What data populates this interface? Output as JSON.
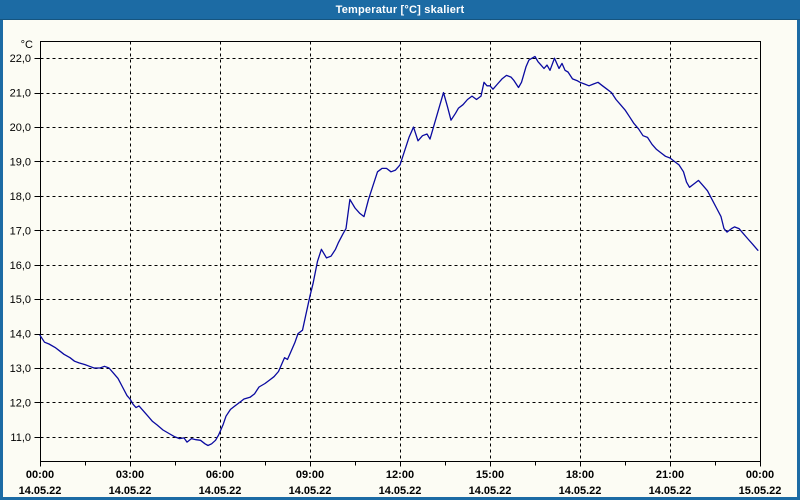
{
  "window": {
    "title": "Temperatur [°C] skaliert"
  },
  "colors": {
    "frame": "#1C6BA4",
    "title_text": "#FFFFFF",
    "background": "#FCFCF4",
    "grid": "#000000",
    "axis": "#000000",
    "label": "#000000",
    "line": "#0A0AA0"
  },
  "chart_data": {
    "type": "line",
    "title": "Temperatur [°C] skaliert",
    "ylabel": "°C",
    "y_unit_label": "°C",
    "grid": "dashed",
    "legend_position": "none",
    "xlim_hours": [
      0,
      24
    ],
    "ylim": [
      10.3,
      22.5
    ],
    "x_ticks": [
      {
        "hour": 0,
        "time": "00:00",
        "date": "14.05.22"
      },
      {
        "hour": 3,
        "time": "03:00",
        "date": "14.05.22"
      },
      {
        "hour": 6,
        "time": "06:00",
        "date": "14.05.22"
      },
      {
        "hour": 9,
        "time": "09:00",
        "date": "14.05.22"
      },
      {
        "hour": 12,
        "time": "12:00",
        "date": "14.05.22"
      },
      {
        "hour": 15,
        "time": "15:00",
        "date": "14.05.22"
      },
      {
        "hour": 18,
        "time": "18:00",
        "date": "14.05.22"
      },
      {
        "hour": 21,
        "time": "21:00",
        "date": "14.05.22"
      },
      {
        "hour": 24,
        "time": "00:00",
        "date": "15.05.22"
      }
    ],
    "x_minor_tick_hours": [
      1.5,
      4.5,
      7.5,
      10.5,
      13.5,
      16.5,
      19.5,
      22.5
    ],
    "y_ticks": [
      {
        "value": 22,
        "label": "22,0"
      },
      {
        "value": 21,
        "label": "21,0"
      },
      {
        "value": 20,
        "label": "20,0"
      },
      {
        "value": 19,
        "label": "19,0"
      },
      {
        "value": 18,
        "label": "18,0"
      },
      {
        "value": 17,
        "label": "17,0"
      },
      {
        "value": 16,
        "label": "16,0"
      },
      {
        "value": 15,
        "label": "15,0"
      },
      {
        "value": 14,
        "label": "14,0"
      },
      {
        "value": 13,
        "label": "13,0"
      },
      {
        "value": 12,
        "label": "12,0"
      },
      {
        "value": 11,
        "label": "11,0"
      }
    ],
    "series": [
      {
        "name": "Temperatur",
        "color": "#0A0AA0",
        "points": [
          [
            0.0,
            13.95
          ],
          [
            0.15,
            13.75
          ],
          [
            0.3,
            13.7
          ],
          [
            0.5,
            13.6
          ],
          [
            0.65,
            13.5
          ],
          [
            0.8,
            13.4
          ],
          [
            1.0,
            13.3
          ],
          [
            1.15,
            13.2
          ],
          [
            1.3,
            13.15
          ],
          [
            1.5,
            13.1
          ],
          [
            1.65,
            13.05
          ],
          [
            1.8,
            13.0
          ],
          [
            2.0,
            13.0
          ],
          [
            2.15,
            13.05
          ],
          [
            2.3,
            13.0
          ],
          [
            2.45,
            12.85
          ],
          [
            2.6,
            12.7
          ],
          [
            2.75,
            12.45
          ],
          [
            2.9,
            12.2
          ],
          [
            3.0,
            12.1
          ],
          [
            3.1,
            11.95
          ],
          [
            3.2,
            11.85
          ],
          [
            3.3,
            11.9
          ],
          [
            3.45,
            11.75
          ],
          [
            3.6,
            11.6
          ],
          [
            3.75,
            11.45
          ],
          [
            3.9,
            11.35
          ],
          [
            4.1,
            11.2
          ],
          [
            4.3,
            11.1
          ],
          [
            4.5,
            11.0
          ],
          [
            4.65,
            10.95
          ],
          [
            4.8,
            10.97
          ],
          [
            4.9,
            10.85
          ],
          [
            5.05,
            10.95
          ],
          [
            5.2,
            10.92
          ],
          [
            5.35,
            10.9
          ],
          [
            5.5,
            10.8
          ],
          [
            5.6,
            10.75
          ],
          [
            5.72,
            10.8
          ],
          [
            5.85,
            10.9
          ],
          [
            5.95,
            11.05
          ],
          [
            6.1,
            11.35
          ],
          [
            6.2,
            11.6
          ],
          [
            6.35,
            11.8
          ],
          [
            6.5,
            11.9
          ],
          [
            6.65,
            12.0
          ],
          [
            6.8,
            12.1
          ],
          [
            7.0,
            12.15
          ],
          [
            7.15,
            12.25
          ],
          [
            7.3,
            12.45
          ],
          [
            7.5,
            12.55
          ],
          [
            7.65,
            12.65
          ],
          [
            7.8,
            12.75
          ],
          [
            7.95,
            12.9
          ],
          [
            8.05,
            13.1
          ],
          [
            8.15,
            13.3
          ],
          [
            8.25,
            13.25
          ],
          [
            8.35,
            13.45
          ],
          [
            8.5,
            13.75
          ],
          [
            8.6,
            14.0
          ],
          [
            8.75,
            14.1
          ],
          [
            8.85,
            14.5
          ],
          [
            9.0,
            15.1
          ],
          [
            9.1,
            15.45
          ],
          [
            9.25,
            16.1
          ],
          [
            9.38,
            16.45
          ],
          [
            9.55,
            16.2
          ],
          [
            9.7,
            16.25
          ],
          [
            9.85,
            16.45
          ],
          [
            9.95,
            16.65
          ],
          [
            10.1,
            16.9
          ],
          [
            10.2,
            17.05
          ],
          [
            10.33,
            17.9
          ],
          [
            10.5,
            17.65
          ],
          [
            10.65,
            17.5
          ],
          [
            10.8,
            17.4
          ],
          [
            10.95,
            17.9
          ],
          [
            11.1,
            18.3
          ],
          [
            11.25,
            18.7
          ],
          [
            11.4,
            18.8
          ],
          [
            11.55,
            18.8
          ],
          [
            11.7,
            18.7
          ],
          [
            11.85,
            18.75
          ],
          [
            12.0,
            18.9
          ],
          [
            12.15,
            19.3
          ],
          [
            12.3,
            19.7
          ],
          [
            12.45,
            20.0
          ],
          [
            12.6,
            19.6
          ],
          [
            12.75,
            19.75
          ],
          [
            12.9,
            19.8
          ],
          [
            13.0,
            19.65
          ],
          [
            13.15,
            20.1
          ],
          [
            13.3,
            20.55
          ],
          [
            13.45,
            21.0
          ],
          [
            13.58,
            20.6
          ],
          [
            13.7,
            20.2
          ],
          [
            13.85,
            20.4
          ],
          [
            13.95,
            20.55
          ],
          [
            14.1,
            20.65
          ],
          [
            14.25,
            20.8
          ],
          [
            14.4,
            20.9
          ],
          [
            14.55,
            20.8
          ],
          [
            14.7,
            20.9
          ],
          [
            14.8,
            21.3
          ],
          [
            14.9,
            21.2
          ],
          [
            15.0,
            21.2
          ],
          [
            15.1,
            21.1
          ],
          [
            15.25,
            21.25
          ],
          [
            15.4,
            21.4
          ],
          [
            15.55,
            21.5
          ],
          [
            15.7,
            21.45
          ],
          [
            15.8,
            21.35
          ],
          [
            15.95,
            21.15
          ],
          [
            16.05,
            21.3
          ],
          [
            16.2,
            21.75
          ],
          [
            16.3,
            21.95
          ],
          [
            16.4,
            22.0
          ],
          [
            16.5,
            22.05
          ],
          [
            16.6,
            21.9
          ],
          [
            16.7,
            21.8
          ],
          [
            16.8,
            21.7
          ],
          [
            16.9,
            21.8
          ],
          [
            17.0,
            21.65
          ],
          [
            17.15,
            22.0
          ],
          [
            17.3,
            21.7
          ],
          [
            17.4,
            21.85
          ],
          [
            17.5,
            21.65
          ],
          [
            17.6,
            21.6
          ],
          [
            17.75,
            21.4
          ],
          [
            17.9,
            21.35
          ],
          [
            18.0,
            21.3
          ],
          [
            18.15,
            21.25
          ],
          [
            18.3,
            21.2
          ],
          [
            18.45,
            21.25
          ],
          [
            18.6,
            21.3
          ],
          [
            18.75,
            21.2
          ],
          [
            18.9,
            21.1
          ],
          [
            19.05,
            21.0
          ],
          [
            19.2,
            20.8
          ],
          [
            19.35,
            20.65
          ],
          [
            19.5,
            20.5
          ],
          [
            19.65,
            20.3
          ],
          [
            19.8,
            20.1
          ],
          [
            19.95,
            19.95
          ],
          [
            20.1,
            19.75
          ],
          [
            20.25,
            19.7
          ],
          [
            20.4,
            19.5
          ],
          [
            20.55,
            19.35
          ],
          [
            20.7,
            19.25
          ],
          [
            20.85,
            19.15
          ],
          [
            21.0,
            19.1
          ],
          [
            21.15,
            19.0
          ],
          [
            21.3,
            18.9
          ],
          [
            21.45,
            18.7
          ],
          [
            21.55,
            18.4
          ],
          [
            21.65,
            18.25
          ],
          [
            21.8,
            18.35
          ],
          [
            21.95,
            18.45
          ],
          [
            22.1,
            18.3
          ],
          [
            22.25,
            18.15
          ],
          [
            22.4,
            17.9
          ],
          [
            22.55,
            17.65
          ],
          [
            22.7,
            17.4
          ],
          [
            22.8,
            17.05
          ],
          [
            22.9,
            16.95
          ],
          [
            23.05,
            17.05
          ],
          [
            23.15,
            17.1
          ],
          [
            23.3,
            17.05
          ],
          [
            23.45,
            16.9
          ],
          [
            23.6,
            16.75
          ],
          [
            23.75,
            16.6
          ],
          [
            23.9,
            16.45
          ],
          [
            23.93,
            16.42
          ]
        ]
      }
    ]
  }
}
